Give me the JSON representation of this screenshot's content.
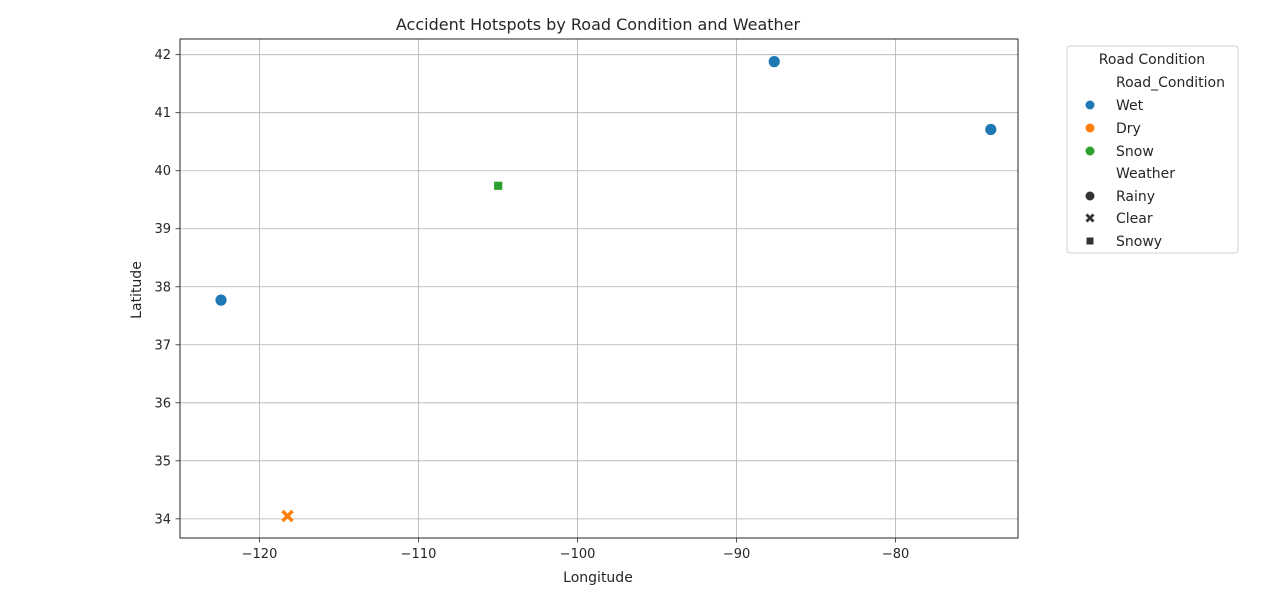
{
  "chart_data": {
    "type": "scatter",
    "title": "Accident Hotspots by Road Condition and Weather",
    "xlabel": "Longitude",
    "ylabel": "Latitude",
    "xlim": [
      -125,
      -72.3
    ],
    "ylim": [
      33.67,
      42.27
    ],
    "xticks": [
      -120,
      -110,
      -100,
      -90,
      -80
    ],
    "xtick_labels": [
      "−120",
      "−110",
      "−100",
      "−90",
      "−80"
    ],
    "yticks": [
      34,
      35,
      36,
      37,
      38,
      39,
      40,
      41,
      42
    ],
    "ytick_labels": [
      "34",
      "35",
      "36",
      "37",
      "38",
      "39",
      "40",
      "41",
      "42"
    ],
    "grid": true,
    "points": [
      {
        "x": -122.42,
        "y": 37.77,
        "road_condition": "Wet",
        "weather": "Rainy"
      },
      {
        "x": -118.24,
        "y": 34.05,
        "road_condition": "Dry",
        "weather": "Clear"
      },
      {
        "x": -104.99,
        "y": 39.74,
        "road_condition": "Snow",
        "weather": "Snowy"
      },
      {
        "x": -87.63,
        "y": 41.88,
        "road_condition": "Wet",
        "weather": "Rainy"
      },
      {
        "x": -74.01,
        "y": 40.71,
        "road_condition": "Wet",
        "weather": "Rainy"
      }
    ],
    "hue": {
      "Wet": "#1f77b4",
      "Dry": "#ff7f0e",
      "Snow": "#2ca02c"
    },
    "style": {
      "Rainy": "circle",
      "Clear": "x",
      "Snowy": "square"
    },
    "legend": {
      "title": "Road Condition",
      "placement": "outside-upper-right",
      "hue_header": "Road_Condition",
      "hue_items": [
        "Wet",
        "Dry",
        "Snow"
      ],
      "style_header": "Weather",
      "style_items": [
        "Rainy",
        "Clear",
        "Snowy"
      ]
    }
  }
}
